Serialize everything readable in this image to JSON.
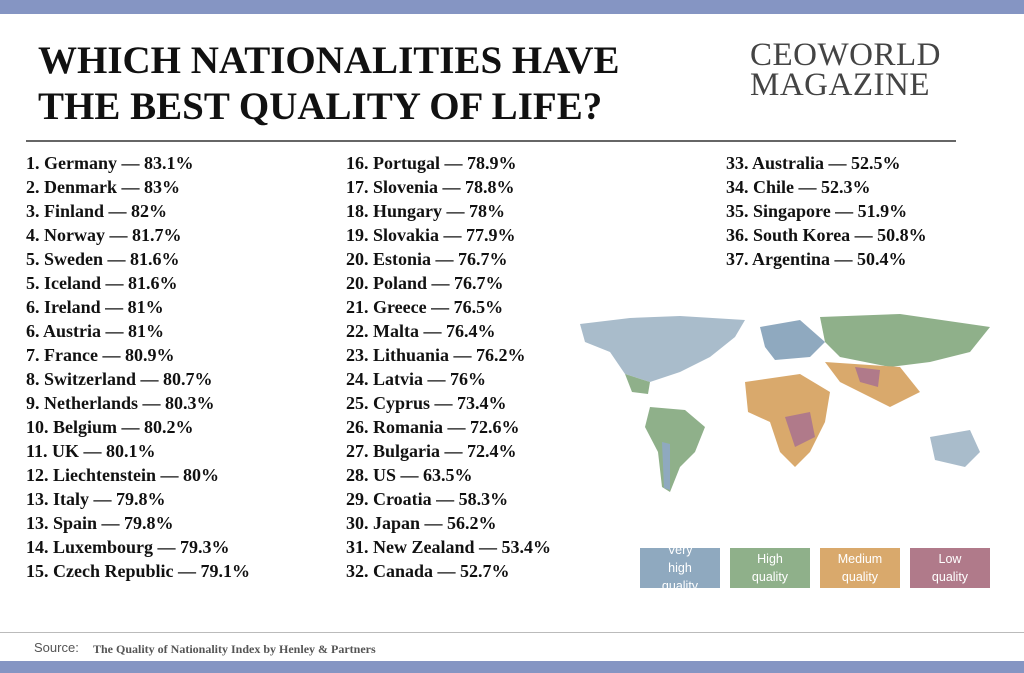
{
  "header": {
    "title_lines": [
      "WHICH NATIONALITIES HAVE",
      "THE BEST QUALITY OF LIFE?"
    ],
    "brand_lines": [
      "CEOWORLD",
      "MAGAZINE"
    ]
  },
  "columns": [
    [
      "1. Germany — 83.1%",
      "2. Denmark — 83%",
      "3. Finland — 82%",
      "4. Norway — 81.7%",
      "5. Sweden — 81.6%",
      "5. Iceland — 81.6%",
      "6. Ireland — 81%",
      "6. Austria — 81%",
      "7. France — 80.9%",
      "8. Switzerland — 80.7%",
      "9. Netherlands — 80.3%",
      "10. Belgium — 80.2%",
      "11. UK — 80.1%",
      "12. Liechtenstein — 80%",
      "13. Italy — 79.8%",
      "13. Spain — 79.8%",
      "14. Luxembourg — 79.3%",
      "15. Czech Republic — 79.1%"
    ],
    [
      "16. Portugal — 78.9%",
      "17. Slovenia — 78.8%",
      "18. Hungary — 78%",
      "19. Slovakia — 77.9%",
      "20. Estonia — 76.7%",
      "20. Poland — 76.7%",
      "21. Greece — 76.5%",
      "22. Malta — 76.4%",
      "23. Lithuania — 76.2%",
      "24. Latvia — 76%",
      "25. Cyprus — 73.4%",
      "26. Romania — 72.6%",
      "27. Bulgaria — 72.4%",
      "28. US — 63.5%",
      "29. Croatia — 58.3%",
      "30. Japan — 56.2%",
      "31. New Zealand — 53.4%",
      "32. Canada — 52.7%"
    ],
    [
      "33. Australia — 52.5%",
      "34. Chile — 52.3%",
      "35. Singapore — 51.9%",
      "36. South Korea — 50.8%",
      "37. Argentina — 50.4%"
    ]
  ],
  "legend": [
    {
      "label": "Very high quality",
      "color": "#8fa9bf"
    },
    {
      "label": "High quality",
      "color": "#8fb08a"
    },
    {
      "label": "Medium quality",
      "color": "#d9a96c"
    },
    {
      "label": "Low quality",
      "color": "#b07a8a"
    }
  ],
  "footer": {
    "source_label": "Source:",
    "source_text": "The Quality of Nationality Index by Henley & Partners"
  }
}
